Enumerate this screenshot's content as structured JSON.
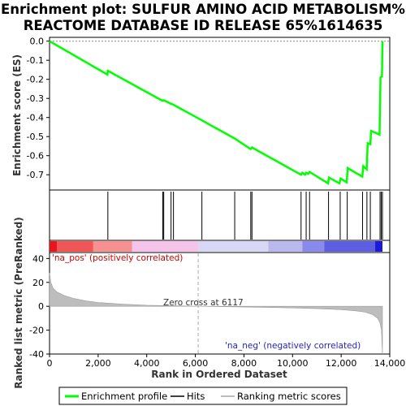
{
  "title_line1": "Enrichment plot: SULFUR AMINO ACID METABOLISM%",
  "title_line2": "REACTOME DATABASE ID RELEASE 65%1614635",
  "colors": {
    "profile": "#00ff00",
    "hits": "#000000",
    "metric_fill": "#bdbdbd",
    "pos_label": "#cc0000",
    "neg_label": "#2222cc"
  },
  "chart_data": {
    "type": "line",
    "x_range": [
      0,
      14000
    ],
    "x_ticks": [
      "0",
      "2,000",
      "4,000",
      "6,000",
      "8,000",
      "10,000",
      "12,000",
      "14,000"
    ],
    "x_tick_values": [
      0,
      2000,
      4000,
      6000,
      8000,
      10000,
      12000,
      14000
    ],
    "xlabel": "Rank in Ordered Dataset",
    "es": {
      "ylabel": "Enrichment score (ES)",
      "ylim": [
        -0.78,
        0.02
      ],
      "y_ticks": [
        "0.0",
        "-0.1",
        "-0.2",
        "-0.3",
        "-0.4",
        "-0.5",
        "-0.6",
        "-0.7"
      ],
      "y_tick_values": [
        0.0,
        -0.1,
        -0.2,
        -0.3,
        -0.4,
        -0.5,
        -0.6,
        -0.7
      ],
      "profile": [
        [
          0,
          0.0
        ],
        [
          2380,
          -0.175
        ],
        [
          2400,
          -0.155
        ],
        [
          4640,
          -0.312
        ],
        [
          4700,
          -0.31
        ],
        [
          5000,
          -0.328
        ],
        [
          5100,
          -0.333
        ],
        [
          6270,
          -0.415
        ],
        [
          7620,
          -0.51
        ],
        [
          8270,
          -0.565
        ],
        [
          8330,
          -0.557
        ],
        [
          10350,
          -0.7
        ],
        [
          10400,
          -0.69
        ],
        [
          10520,
          -0.7
        ],
        [
          10560,
          -0.69
        ],
        [
          10650,
          -0.695
        ],
        [
          10700,
          -0.685
        ],
        [
          11460,
          -0.745
        ],
        [
          11500,
          -0.715
        ],
        [
          11930,
          -0.745
        ],
        [
          11980,
          -0.72
        ],
        [
          12230,
          -0.74
        ],
        [
          12270,
          -0.665
        ],
        [
          12870,
          -0.71
        ],
        [
          12910,
          -0.655
        ],
        [
          13050,
          -0.672
        ],
        [
          13090,
          -0.535
        ],
        [
          13200,
          -0.54
        ],
        [
          13230,
          -0.47
        ],
        [
          13580,
          -0.49
        ],
        [
          13600,
          -0.345
        ],
        [
          13620,
          -0.19
        ],
        [
          13680,
          -0.185
        ],
        [
          13700,
          0.0
        ]
      ]
    },
    "hits": [
      2400,
      4660,
      4700,
      5000,
      5100,
      6270,
      7620,
      8280,
      8330,
      10350,
      10560,
      10700,
      11480,
      11960,
      12250,
      12880,
      13060,
      13200,
      13600,
      13650,
      13700
    ],
    "metric": {
      "ylabel": "Ranked list metric (PreRanked)",
      "ylim": [
        -40,
        45
      ],
      "y_ticks": [
        "40",
        "20",
        "0",
        "-20",
        "-40"
      ],
      "y_tick_values": [
        40,
        20,
        0,
        -20,
        -40
      ],
      "curve": [
        [
          0,
          28
        ],
        [
          50,
          20
        ],
        [
          150,
          15
        ],
        [
          300,
          12
        ],
        [
          600,
          9
        ],
        [
          1000,
          6.5
        ],
        [
          1500,
          4.5
        ],
        [
          2000,
          3.2
        ],
        [
          3000,
          1.8
        ],
        [
          4000,
          0.9
        ],
        [
          5000,
          0.4
        ],
        [
          6117,
          0
        ],
        [
          7000,
          -0.3
        ],
        [
          8000,
          -0.6
        ],
        [
          9000,
          -1.0
        ],
        [
          10000,
          -1.4
        ],
        [
          11000,
          -2.0
        ],
        [
          12000,
          -2.8
        ],
        [
          12600,
          -3.8
        ],
        [
          13000,
          -5
        ],
        [
          13300,
          -7
        ],
        [
          13500,
          -10
        ],
        [
          13600,
          -14
        ],
        [
          13660,
          -20
        ],
        [
          13700,
          -40
        ]
      ],
      "zero_cross_label": "Zero cross at 6117",
      "zero_cross_rank": 6117,
      "pos_label": "'na_pos' (positively correlated)",
      "neg_label": "'na_neg' (negatively correlated)"
    },
    "legend": {
      "placement": "bottom",
      "items": [
        "Enrichment profile",
        "Hits",
        "Ranking metric scores"
      ]
    }
  }
}
